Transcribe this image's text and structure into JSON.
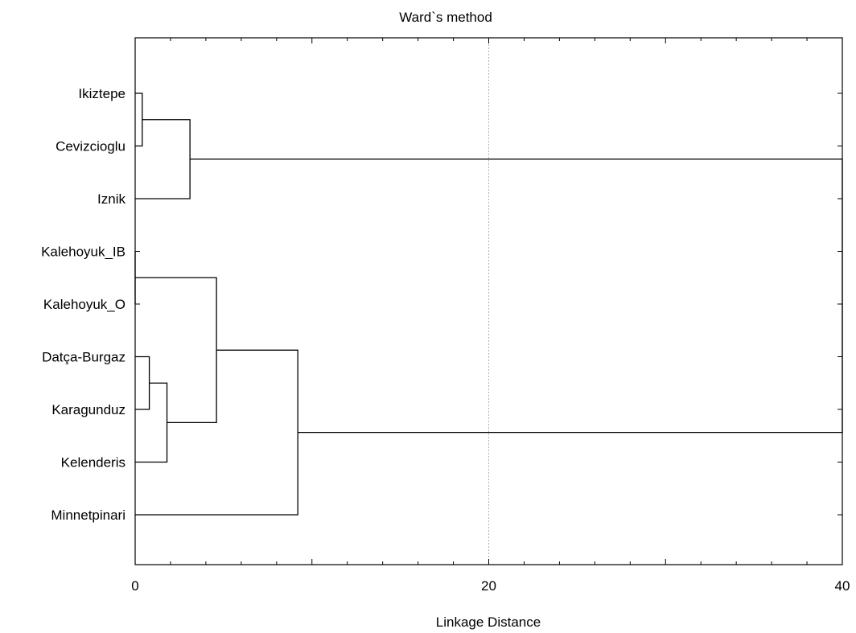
{
  "chart_data": {
    "type": "dendrogram",
    "title": "Ward`s method",
    "xlabel": "Linkage Distance",
    "xlim": [
      0,
      40
    ],
    "x_ticks": [
      "0",
      "20",
      "40"
    ],
    "grid": "vertical dotted line at 20",
    "leaves": [
      "Ikiztepe",
      "Cevizcioglu",
      "Iznik",
      "Kalehoyuk_IB",
      "Kalehoyuk_O",
      "Datça-Burgaz",
      "Karagunduz",
      "Kelenderis",
      "Minnetpinari"
    ],
    "merges": [
      {
        "id": "m1",
        "a": "Ikiztepe",
        "b": "Cevizcioglu",
        "distance": 0.4
      },
      {
        "id": "m2",
        "a": "m1",
        "b": "Iznik",
        "distance": 3.1
      },
      {
        "id": "m3",
        "a": "Kalehoyuk_IB",
        "b": "Kalehoyuk_O",
        "distance": 0.0
      },
      {
        "id": "m4",
        "a": "Datça-Burgaz",
        "b": "Karagunduz",
        "distance": 0.8
      },
      {
        "id": "m5",
        "a": "m4",
        "b": "Kelenderis",
        "distance": 1.8
      },
      {
        "id": "m6",
        "a": "m3",
        "b": "m5",
        "distance": 4.6
      },
      {
        "id": "m7",
        "a": "m6",
        "b": "Minnetpinari",
        "distance": 9.2
      },
      {
        "id": "m8",
        "a": "m2",
        "b": "m7",
        "distance": 40
      }
    ]
  }
}
